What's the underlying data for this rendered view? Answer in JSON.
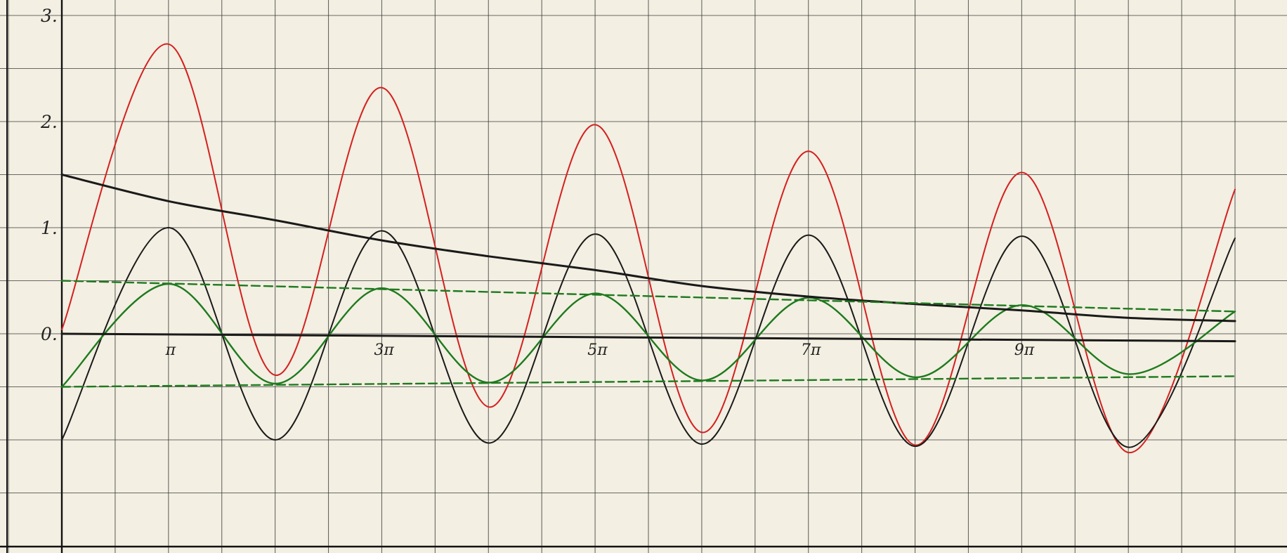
{
  "chart_data": {
    "type": "line",
    "title": "",
    "xlabel": "",
    "ylabel": "",
    "xlim": [
      0,
      34.54
    ],
    "ylim": [
      -1.5,
      3.08
    ],
    "grid": true,
    "y_ticks": [
      {
        "value": 0,
        "label": "0."
      },
      {
        "value": 1,
        "label": "1."
      },
      {
        "value": 2,
        "label": "2."
      },
      {
        "value": 3,
        "label": "3."
      }
    ],
    "x_ticks": [
      {
        "value": 3.1416,
        "label": "π"
      },
      {
        "value": 9.4248,
        "label": "3π"
      },
      {
        "value": 15.708,
        "label": "5π"
      },
      {
        "value": 21.991,
        "label": "7π"
      },
      {
        "value": 28.274,
        "label": "9π"
      }
    ],
    "series": [
      {
        "id": "red-oscillation",
        "color": "#d42020",
        "style": "solid",
        "formula_note": "1.5*exp(-0.0195t) - cos(t) * (1.25*exp(-0.0195t) + 0.0 ...)",
        "points": [
          [
            0,
            0.04
          ],
          [
            3.14,
            2.73
          ],
          [
            6.28,
            -0.39
          ],
          [
            9.42,
            2.32
          ],
          [
            12.57,
            -0.69
          ],
          [
            15.71,
            1.97
          ],
          [
            18.85,
            -0.93
          ],
          [
            21.99,
            1.72
          ],
          [
            25.13,
            -1.05
          ],
          [
            28.27,
            1.52
          ],
          [
            31.42,
            -1.12
          ],
          [
            34.54,
            1.36
          ]
        ]
      },
      {
        "id": "black-oscillation",
        "color": "#1a1a1a",
        "style": "solid",
        "points": [
          [
            0,
            -1.0
          ],
          [
            3.14,
            1.0
          ],
          [
            6.28,
            -1.0
          ],
          [
            9.42,
            0.97
          ],
          [
            12.57,
            -1.03
          ],
          [
            15.71,
            0.94
          ],
          [
            18.85,
            -1.04
          ],
          [
            21.99,
            0.93
          ],
          [
            25.13,
            -1.06
          ],
          [
            28.27,
            0.92
          ],
          [
            31.42,
            -1.07
          ],
          [
            34.54,
            0.9
          ]
        ]
      },
      {
        "id": "green-oscillation",
        "color": "#1e7a1e",
        "style": "solid",
        "points": [
          [
            0,
            -0.5
          ],
          [
            3.14,
            0.47
          ],
          [
            6.28,
            -0.47
          ],
          [
            9.42,
            0.43
          ],
          [
            12.57,
            -0.46
          ],
          [
            15.71,
            0.38
          ],
          [
            18.85,
            -0.44
          ],
          [
            21.99,
            0.34
          ],
          [
            25.13,
            -0.41
          ],
          [
            28.27,
            0.27
          ],
          [
            31.42,
            -0.38
          ],
          [
            34.54,
            0.21
          ]
        ]
      },
      {
        "id": "black-decay",
        "color": "#1a1a1a",
        "style": "solid",
        "points": [
          [
            0,
            1.5
          ],
          [
            3.14,
            1.25
          ],
          [
            6.28,
            1.07
          ],
          [
            9.42,
            0.88
          ],
          [
            12.57,
            0.73
          ],
          [
            15.71,
            0.6
          ],
          [
            18.85,
            0.45
          ],
          [
            21.99,
            0.35
          ],
          [
            25.13,
            0.28
          ],
          [
            28.27,
            0.22
          ],
          [
            31.42,
            0.15
          ],
          [
            34.54,
            0.12
          ]
        ]
      },
      {
        "id": "green-upper-envelope",
        "color": "#1e7a1e",
        "style": "dashed",
        "points": [
          [
            0,
            0.5
          ],
          [
            34.54,
            0.21
          ]
        ]
      },
      {
        "id": "green-lower-envelope",
        "color": "#1e7a1e",
        "style": "dashed",
        "points": [
          [
            0,
            -0.5
          ],
          [
            34.54,
            -0.4
          ]
        ]
      },
      {
        "id": "zero-axis",
        "color": "#1a1a1a",
        "style": "solid",
        "points": [
          [
            0,
            0
          ],
          [
            34.54,
            -0.07
          ]
        ]
      }
    ]
  }
}
